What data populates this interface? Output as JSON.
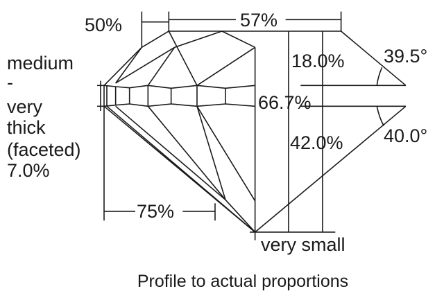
{
  "diagram": {
    "labels": {
      "crown_angle_half": "50%",
      "table": "57%",
      "girdle_lines": [
        "medium",
        "-",
        "very",
        "thick",
        "(faceted)",
        "7.0%"
      ],
      "crown_height": "18.0%",
      "crown_angle": "39.5°",
      "total_depth": "66.7%",
      "pavilion_depth": "42.0%",
      "pavilion_angle": "40.0°",
      "lower_half": "75%",
      "culet": "very small"
    },
    "caption": "Profile to actual proportions",
    "line_color": "#1a1a1a"
  }
}
